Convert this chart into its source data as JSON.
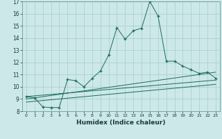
{
  "xlabel": "Humidex (Indice chaleur)",
  "bg_color": "#cce8e8",
  "grid_color": "#aacccc",
  "line_color": "#1a6b5a",
  "xlim": [
    -0.5,
    23.5
  ],
  "ylim": [
    8,
    17
  ],
  "xtick_labels": [
    "0",
    "1",
    "2",
    "3",
    "4",
    "5",
    "6",
    "7",
    "8",
    "9",
    "10",
    "11",
    "12",
    "13",
    "14",
    "15",
    "16",
    "17",
    "18",
    "19",
    "20",
    "21",
    "22",
    "23"
  ],
  "ytick_labels": [
    "8",
    "9",
    "10",
    "11",
    "12",
    "13",
    "14",
    "15",
    "16",
    "17"
  ],
  "main_x": [
    0,
    1,
    2,
    3,
    4,
    5,
    6,
    7,
    8,
    9,
    10,
    11,
    12,
    13,
    14,
    15,
    16,
    17,
    18,
    19,
    20,
    21,
    22,
    23
  ],
  "main_y": [
    9.2,
    9.1,
    8.35,
    8.3,
    8.3,
    10.6,
    10.5,
    10.0,
    10.7,
    11.3,
    12.6,
    14.85,
    13.9,
    14.6,
    14.8,
    17.0,
    15.8,
    12.1,
    12.1,
    11.7,
    11.4,
    11.1,
    11.2,
    10.7
  ],
  "line1_x": [
    0,
    23
  ],
  "line1_y": [
    9.2,
    10.55
  ],
  "line2_x": [
    0,
    23
  ],
  "line2_y": [
    9.0,
    11.2
  ],
  "line3_x": [
    0,
    23
  ],
  "line3_y": [
    8.75,
    10.2
  ]
}
